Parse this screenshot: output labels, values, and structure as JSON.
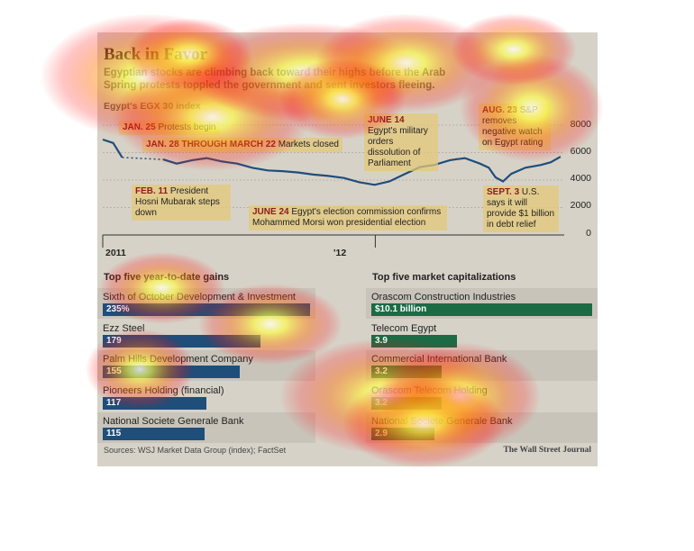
{
  "header": {
    "title": "Back in Favor",
    "subtitle": "Egyptian stocks are climbing back toward their highs before the Arab Spring protests toppled the government and sent investors fleeing.",
    "index_label": "Egypt's EGX 30 index"
  },
  "colors": {
    "line": "#1f4e7a",
    "gains_bar": "#1f4e7a",
    "caps_bar": "#1b6b45"
  },
  "chart_data": [
    {
      "type": "line",
      "title": "Egypt's EGX 30 index",
      "y_ticks": [
        "8000",
        "6000",
        "4000",
        "2000",
        "0"
      ],
      "ylim": [
        0,
        8000
      ],
      "x_ticks": [
        "2011",
        "'12"
      ],
      "x_domain": [
        "2011-01-01",
        "2012-09-10"
      ],
      "gap": {
        "from": "2011-01-28",
        "to": "2011-03-22",
        "note": "Markets closed"
      },
      "series": [
        {
          "x": [
            "2011-01-01",
            "2011-01-15",
            "2011-01-27",
            "2011-03-23",
            "2011-04-10",
            "2011-05-01",
            "2011-05-20",
            "2011-06-10",
            "2011-06-30",
            "2011-07-20",
            "2011-08-10",
            "2011-08-30",
            "2011-09-20",
            "2011-10-10",
            "2011-10-30",
            "2011-11-20",
            "2011-12-10",
            "2011-12-31",
            "2012-01-20",
            "2012-02-10",
            "2012-03-01",
            "2012-03-20",
            "2012-04-10",
            "2012-04-30",
            "2012-05-20",
            "2012-06-01",
            "2012-06-10",
            "2012-06-20",
            "2012-07-01",
            "2012-07-20",
            "2012-08-10",
            "2012-08-23",
            "2012-09-05"
          ],
          "values": [
            6950,
            6700,
            5650,
            5500,
            5200,
            5450,
            5600,
            5350,
            5200,
            4900,
            4700,
            4650,
            4550,
            4400,
            4300,
            4150,
            3850,
            3650,
            3900,
            4450,
            4950,
            5100,
            5450,
            5600,
            5200,
            4900,
            4200,
            3900,
            4450,
            4900,
            5100,
            5300,
            5700
          ]
        }
      ],
      "annotations": [
        {
          "date": "JAN. 25",
          "text": "Protests begin"
        },
        {
          "date": "JAN. 28 THROUGH MARCH 22",
          "text": "Markets closed"
        },
        {
          "date": "FEB. 11",
          "text": "President Hosni Mubarak steps down"
        },
        {
          "date": "JUNE 14",
          "text": "Egypt's military orders dissolution of Parliament"
        },
        {
          "date": "JUNE 24",
          "text": "Egypt's election commission confirms Mohammed Morsi won presidential election"
        },
        {
          "date": "AUG. 23",
          "text": "S&P removes negative watch on Egypt rating"
        },
        {
          "date": "SEPT. 3",
          "text": "U.S. says it will provide $1 billion in debt relief"
        }
      ]
    },
    {
      "type": "bar",
      "title": "Top five year-to-date gains",
      "categories": [
        "Sixth of October Development & Investment",
        "Ezz Steel",
        "Palm Hills Development Company",
        "Pioneers Holding (financial)",
        "National Societe Generale Bank"
      ],
      "values": [
        235,
        179,
        155,
        117,
        115
      ],
      "labels": [
        "235%",
        "179",
        "155",
        "117",
        "115"
      ]
    },
    {
      "type": "bar",
      "title": "Top five market capitalizations",
      "categories": [
        "Orascom Construction Industries",
        "Telecom Egypt",
        "Commercial International Bank",
        "Orascom Telecom Holding",
        "National Societe Generale Bank"
      ],
      "values": [
        10.1,
        3.9,
        3.2,
        3.2,
        2.9
      ],
      "labels": [
        "$10.1 billion",
        "3.9",
        "3.2",
        "3.2",
        "2.9"
      ]
    }
  ],
  "footer": {
    "source": "Sources: WSJ Market Data Group (index); FactSet",
    "credit": "The Wall Street Journal"
  }
}
